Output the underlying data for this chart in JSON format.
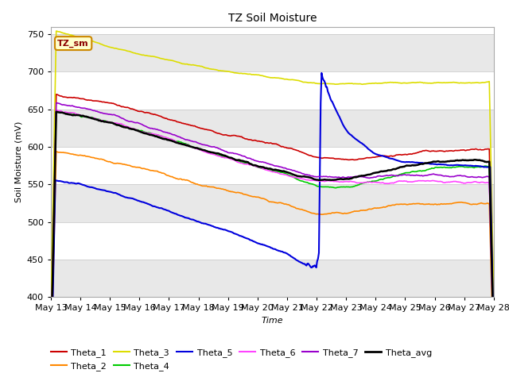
{
  "title": "TZ Soil Moisture",
  "xlabel": "Time",
  "ylabel": "Soil Moisture (mV)",
  "ylim": [
    400,
    760
  ],
  "fig_bg": "#ffffff",
  "plot_bg": "#ffffff",
  "band_color": "#e8e8e8",
  "legend_label": "TZ_sm",
  "series_order": [
    "Theta_1",
    "Theta_2",
    "Theta_3",
    "Theta_4",
    "Theta_5",
    "Theta_6",
    "Theta_7",
    "Theta_avg"
  ],
  "series": {
    "Theta_1": {
      "color": "#cc0000",
      "lw": 1.2
    },
    "Theta_2": {
      "color": "#ff8800",
      "lw": 1.2
    },
    "Theta_3": {
      "color": "#dddd00",
      "lw": 1.2
    },
    "Theta_4": {
      "color": "#00cc00",
      "lw": 1.2
    },
    "Theta_5": {
      "color": "#0000dd",
      "lw": 1.5
    },
    "Theta_6": {
      "color": "#ff44ff",
      "lw": 1.2
    },
    "Theta_7": {
      "color": "#9900cc",
      "lw": 1.2
    },
    "Theta_avg": {
      "color": "#000000",
      "lw": 1.8
    }
  },
  "xtick_labels": [
    "May 13",
    "May 14",
    "May 15",
    "May 16",
    "May 17",
    "May 18",
    "May 19",
    "May 20",
    "May 21",
    "May 22",
    "May 23",
    "May 24",
    "May 25",
    "May 26",
    "May 27",
    "May 28"
  ],
  "yticks": [
    400,
    450,
    500,
    550,
    600,
    650,
    700,
    750
  ],
  "n_points": 500
}
